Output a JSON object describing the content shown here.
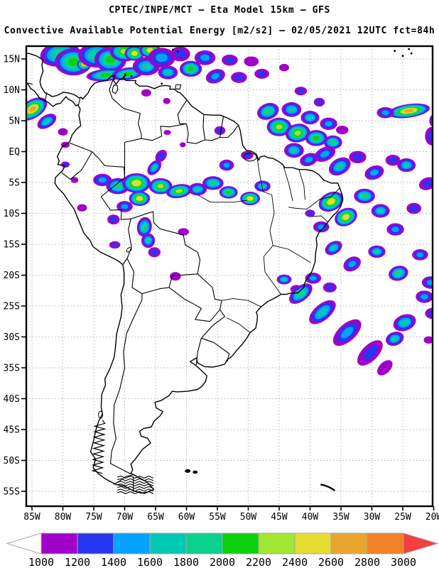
{
  "header": {
    "line1": "CPTEC/INPE/MCT —  Eta Model 15km — GFS",
    "line2": "Convective Available Potential Energy [m2/s2] — 02/05/2021 12UTC fct=84h"
  },
  "axes": {
    "lat_ticks": [
      [
        "15N",
        15
      ],
      [
        "10N",
        10
      ],
      [
        "5N",
        5
      ],
      [
        "EQ",
        0
      ],
      [
        "5S",
        -5
      ],
      [
        "10S",
        -10
      ],
      [
        "15S",
        -15
      ],
      [
        "20S",
        -20
      ],
      [
        "25S",
        -25
      ],
      [
        "30S",
        -30
      ],
      [
        "35S",
        -35
      ],
      [
        "40S",
        -40
      ],
      [
        "45S",
        -45
      ],
      [
        "50S",
        -50
      ],
      [
        "55S",
        -55
      ]
    ],
    "lon_ticks": [
      [
        "85W",
        -85
      ],
      [
        "80W",
        -80
      ],
      [
        "75W",
        -75
      ],
      [
        "70W",
        -70
      ],
      [
        "65W",
        -65
      ],
      [
        "60W",
        -60
      ],
      [
        "55W",
        -55
      ],
      [
        "50W",
        -50
      ],
      [
        "45W",
        -45
      ],
      [
        "40W",
        -40
      ],
      [
        "35W",
        -35
      ],
      [
        "30W",
        -30
      ],
      [
        "25W",
        -25
      ],
      [
        "20W",
        -20
      ]
    ],
    "grid_color": "#b4b4b4",
    "frame_color": "#000000"
  },
  "colorbar": {
    "tick_labels": [
      "1000",
      "1200",
      "1400",
      "1600",
      "1800",
      "2000",
      "2200",
      "2400",
      "2600",
      "2800",
      "3000"
    ],
    "cell_colors": [
      "#a000c8",
      "#2836f0",
      "#04a2ff",
      "#00c8b4",
      "#0ad28e",
      "#0cd20c",
      "#a0e632",
      "#e6dc32",
      "#e8a62e",
      "#f08228"
    ],
    "under_arrow_color": "#ffffff",
    "over_arrow_color": "#f54040",
    "outline_color": "#a6a6a6"
  },
  "chart_data": {
    "type": "heatmap",
    "title": "CPTEC/INPE/MCT — Eta Model 15km — GFS",
    "subtitle": "Convective Available Potential Energy [m2/s2] — 02/05/2021 12UTC fct=84h",
    "variable": "Convective Available Potential Energy",
    "units": "m2/s2",
    "valid": "02/05/2021 12UTC",
    "forecast": "fct=84h",
    "lon_range": [
      -86,
      -19.9
    ],
    "lat_range": [
      -57.6,
      17.2
    ],
    "contour_levels": [
      1000,
      1200,
      1400,
      1600,
      1800,
      2000,
      2200,
      2400,
      2600,
      2800,
      3000
    ],
    "palette": [
      "#a000c8",
      "#2836f0",
      "#04a2ff",
      "#00c8b4",
      "#0ad28e",
      "#0cd20c",
      "#a0e632",
      "#e6dc32",
      "#e8a62e",
      "#f08228"
    ],
    "cape_cells": [
      [
        -80.5,
        15.8,
        3.2,
        2.0,
        -10,
        5
      ],
      [
        -78.3,
        14.5,
        3.0,
        2.2,
        0,
        6
      ],
      [
        -76.6,
        14.1,
        1.1,
        0.9,
        0,
        9
      ],
      [
        -74.5,
        15.6,
        3.0,
        2.0,
        0,
        5
      ],
      [
        -72.3,
        14.9,
        2.6,
        2.0,
        0,
        6
      ],
      [
        -70.0,
        16.2,
        2.4,
        1.6,
        0,
        7
      ],
      [
        -68.4,
        15.9,
        1.6,
        1.2,
        0,
        8
      ],
      [
        -65.9,
        16.4,
        1.7,
        1.2,
        0,
        8
      ],
      [
        -73.0,
        12.4,
        3.2,
        1.0,
        -5,
        6
      ],
      [
        -69.5,
        12.6,
        2.6,
        1.0,
        -8,
        6
      ],
      [
        -66.5,
        13.8,
        2.2,
        1.5,
        0,
        4
      ],
      [
        -64.0,
        15.2,
        2.2,
        1.6,
        0,
        3
      ],
      [
        -63.0,
        12.8,
        1.6,
        1.1,
        0,
        4
      ],
      [
        -61.0,
        15.8,
        1.6,
        1.2,
        0,
        2
      ],
      [
        -59.3,
        13.4,
        1.8,
        1.3,
        0,
        6
      ],
      [
        -57.0,
        15.2,
        1.7,
        1.2,
        0,
        3
      ],
      [
        -55.3,
        12.2,
        1.6,
        1.1,
        -20,
        3
      ],
      [
        -53.0,
        14.8,
        1.3,
        0.9,
        0,
        2
      ],
      [
        -51.5,
        12.0,
        1.3,
        0.9,
        0,
        2
      ],
      [
        -49.5,
        14.6,
        1.2,
        0.8,
        0,
        1
      ],
      [
        -47.8,
        12.6,
        1.2,
        0.8,
        0,
        2
      ],
      [
        -44.2,
        13.6,
        0.8,
        0.6,
        0,
        1
      ],
      [
        -66.5,
        9.5,
        0.8,
        0.6,
        0,
        1
      ],
      [
        -63.2,
        8.2,
        0.6,
        0.5,
        0,
        1
      ],
      [
        -63.1,
        3.1,
        0.6,
        0.4,
        0,
        1
      ],
      [
        -60.6,
        1.1,
        0.5,
        0.4,
        0,
        1
      ],
      [
        -84.9,
        6.9,
        2.6,
        1.5,
        -32,
        9
      ],
      [
        -82.6,
        4.9,
        1.7,
        1.0,
        -32,
        4
      ],
      [
        -80.0,
        3.2,
        0.8,
        0.6,
        0,
        1
      ],
      [
        -79.6,
        1.1,
        0.7,
        0.5,
        0,
        1
      ],
      [
        -79.6,
        -2.1,
        0.7,
        0.5,
        0,
        2
      ],
      [
        -78.1,
        -4.6,
        0.6,
        0.5,
        0,
        1
      ],
      [
        -46.8,
        6.5,
        1.8,
        1.3,
        -20,
        5
      ],
      [
        -45.0,
        4.0,
        2.0,
        1.5,
        0,
        7
      ],
      [
        -43.0,
        6.8,
        1.6,
        1.2,
        0,
        4
      ],
      [
        -42.0,
        3.0,
        2.0,
        1.5,
        -10,
        7
      ],
      [
        -40.0,
        5.5,
        1.5,
        1.1,
        0,
        4
      ],
      [
        -39.0,
        2.2,
        1.8,
        1.3,
        0,
        6
      ],
      [
        -37.0,
        4.5,
        1.4,
        1.0,
        0,
        3
      ],
      [
        -36.3,
        1.5,
        1.5,
        1.1,
        0,
        5
      ],
      [
        -34.8,
        3.5,
        1.0,
        0.7,
        0,
        1
      ],
      [
        -38.5,
        8.0,
        0.9,
        0.7,
        0,
        2
      ],
      [
        -41.5,
        9.8,
        1.0,
        0.7,
        0,
        2
      ],
      [
        -24.0,
        6.6,
        3.4,
        1.1,
        -8,
        9
      ],
      [
        -27.8,
        6.3,
        1.4,
        0.9,
        0,
        3
      ],
      [
        -20.3,
        2.5,
        1.1,
        1.5,
        0,
        2
      ],
      [
        -19.8,
        5.0,
        0.9,
        1.1,
        0,
        4
      ],
      [
        -42.6,
        0.2,
        1.6,
        1.2,
        0,
        4
      ],
      [
        -40.2,
        -1.3,
        1.5,
        1.0,
        -20,
        3
      ],
      [
        -37.6,
        -0.4,
        1.8,
        1.1,
        -25,
        3
      ],
      [
        -35.2,
        -2.4,
        1.9,
        1.3,
        -30,
        4
      ],
      [
        -32.3,
        -0.9,
        1.4,
        1.0,
        0,
        2
      ],
      [
        -29.6,
        -3.4,
        1.6,
        1.1,
        -20,
        3
      ],
      [
        -26.6,
        -1.4,
        1.2,
        0.9,
        0,
        2
      ],
      [
        -24.4,
        -2.2,
        1.5,
        1.1,
        0,
        4
      ],
      [
        -21.0,
        -5.2,
        1.4,
        1.0,
        -20,
        2
      ],
      [
        -36.6,
        -8.1,
        2.1,
        1.5,
        -25,
        8
      ],
      [
        -34.2,
        -10.6,
        1.9,
        1.4,
        -25,
        8
      ],
      [
        -31.2,
        -7.2,
        1.7,
        1.2,
        0,
        5
      ],
      [
        -28.6,
        -9.6,
        1.5,
        1.1,
        0,
        4
      ],
      [
        -38.2,
        -12.2,
        1.3,
        0.9,
        0,
        3
      ],
      [
        -40.0,
        -10.0,
        0.8,
        0.6,
        0,
        2
      ],
      [
        -26.2,
        -12.6,
        1.4,
        1.0,
        0,
        3
      ],
      [
        -23.2,
        -9.2,
        1.2,
        0.9,
        0,
        2
      ],
      [
        -53.5,
        -2.2,
        1.2,
        0.9,
        0,
        3
      ],
      [
        -50.2,
        -0.6,
        1.0,
        0.7,
        0,
        2
      ],
      [
        -54.6,
        3.4,
        0.9,
        0.7,
        0,
        2
      ],
      [
        -73.6,
        -4.6,
        1.5,
        1.0,
        0,
        3
      ],
      [
        -71.1,
        -5.6,
        1.9,
        1.3,
        0,
        5
      ],
      [
        -68.1,
        -5.1,
        2.3,
        1.6,
        0,
        8
      ],
      [
        -67.6,
        -7.6,
        1.7,
        1.2,
        0,
        8
      ],
      [
        -64.2,
        -5.6,
        1.9,
        1.3,
        0,
        7
      ],
      [
        -61.2,
        -6.4,
        2.1,
        1.1,
        -10,
        7
      ],
      [
        -58.2,
        -6.1,
        1.5,
        1.0,
        0,
        4
      ],
      [
        -55.7,
        -5.1,
        1.7,
        1.1,
        0,
        5
      ],
      [
        -53.2,
        -6.6,
        1.5,
        1.0,
        0,
        6
      ],
      [
        -49.7,
        -7.6,
        1.6,
        1.1,
        0,
        8
      ],
      [
        -47.7,
        -5.6,
        1.3,
        0.9,
        0,
        4
      ],
      [
        -65.2,
        -2.6,
        1.4,
        0.9,
        -50,
        4
      ],
      [
        -64.1,
        -0.7,
        1.1,
        0.8,
        -50,
        2
      ],
      [
        -70.0,
        -8.9,
        1.3,
        0.9,
        0,
        3
      ],
      [
        -71.8,
        -11.0,
        1.0,
        0.8,
        0,
        2
      ],
      [
        -66.8,
        -12.2,
        1.2,
        1.6,
        10,
        5
      ],
      [
        -66.2,
        -14.4,
        1.1,
        1.2,
        0,
        4
      ],
      [
        -65.2,
        -16.3,
        1.0,
        0.8,
        0,
        2
      ],
      [
        -60.5,
        -13.0,
        0.9,
        0.6,
        0,
        1
      ],
      [
        -61.8,
        -20.2,
        0.9,
        0.7,
        0,
        1
      ],
      [
        -76.9,
        -9.1,
        0.8,
        0.6,
        0,
        1
      ],
      [
        -71.6,
        -15.1,
        0.9,
        0.6,
        0,
        2
      ],
      [
        -44.2,
        -20.7,
        1.2,
        0.8,
        0,
        4
      ],
      [
        -42.2,
        -22.3,
        1.0,
        0.7,
        0,
        2
      ],
      [
        -39.5,
        -20.5,
        1.3,
        0.9,
        0,
        3
      ],
      [
        -36.8,
        -22.0,
        1.1,
        0.8,
        0,
        2
      ],
      [
        -36.2,
        -15.6,
        1.5,
        1.0,
        -30,
        4
      ],
      [
        -33.2,
        -18.2,
        1.5,
        1.1,
        -30,
        3
      ],
      [
        -29.2,
        -16.2,
        1.4,
        1.0,
        0,
        4
      ],
      [
        -25.7,
        -19.7,
        1.6,
        1.2,
        -15,
        5
      ],
      [
        -22.2,
        -16.7,
        1.3,
        0.9,
        0,
        3
      ],
      [
        -20.5,
        -21.2,
        1.4,
        1.0,
        0,
        3
      ],
      [
        -21.5,
        -23.5,
        1.4,
        1.0,
        0,
        3
      ],
      [
        -41.5,
        -23.0,
        2.2,
        1.2,
        -38,
        5
      ],
      [
        -38.0,
        -26.0,
        2.6,
        1.3,
        -40,
        4
      ],
      [
        -34.0,
        -29.3,
        2.8,
        1.4,
        -42,
        3
      ],
      [
        -30.3,
        -32.6,
        2.6,
        1.3,
        -45,
        2
      ],
      [
        -27.9,
        -35.0,
        1.5,
        0.9,
        -45,
        1
      ],
      [
        -26.3,
        -30.3,
        1.5,
        1.1,
        -20,
        4
      ],
      [
        -24.7,
        -27.7,
        1.9,
        1.3,
        -20,
        4
      ],
      [
        -20.8,
        -30.5,
        0.8,
        0.6,
        0,
        1
      ],
      [
        -20.2,
        -26.2,
        1.2,
        0.9,
        0,
        2
      ]
    ]
  }
}
